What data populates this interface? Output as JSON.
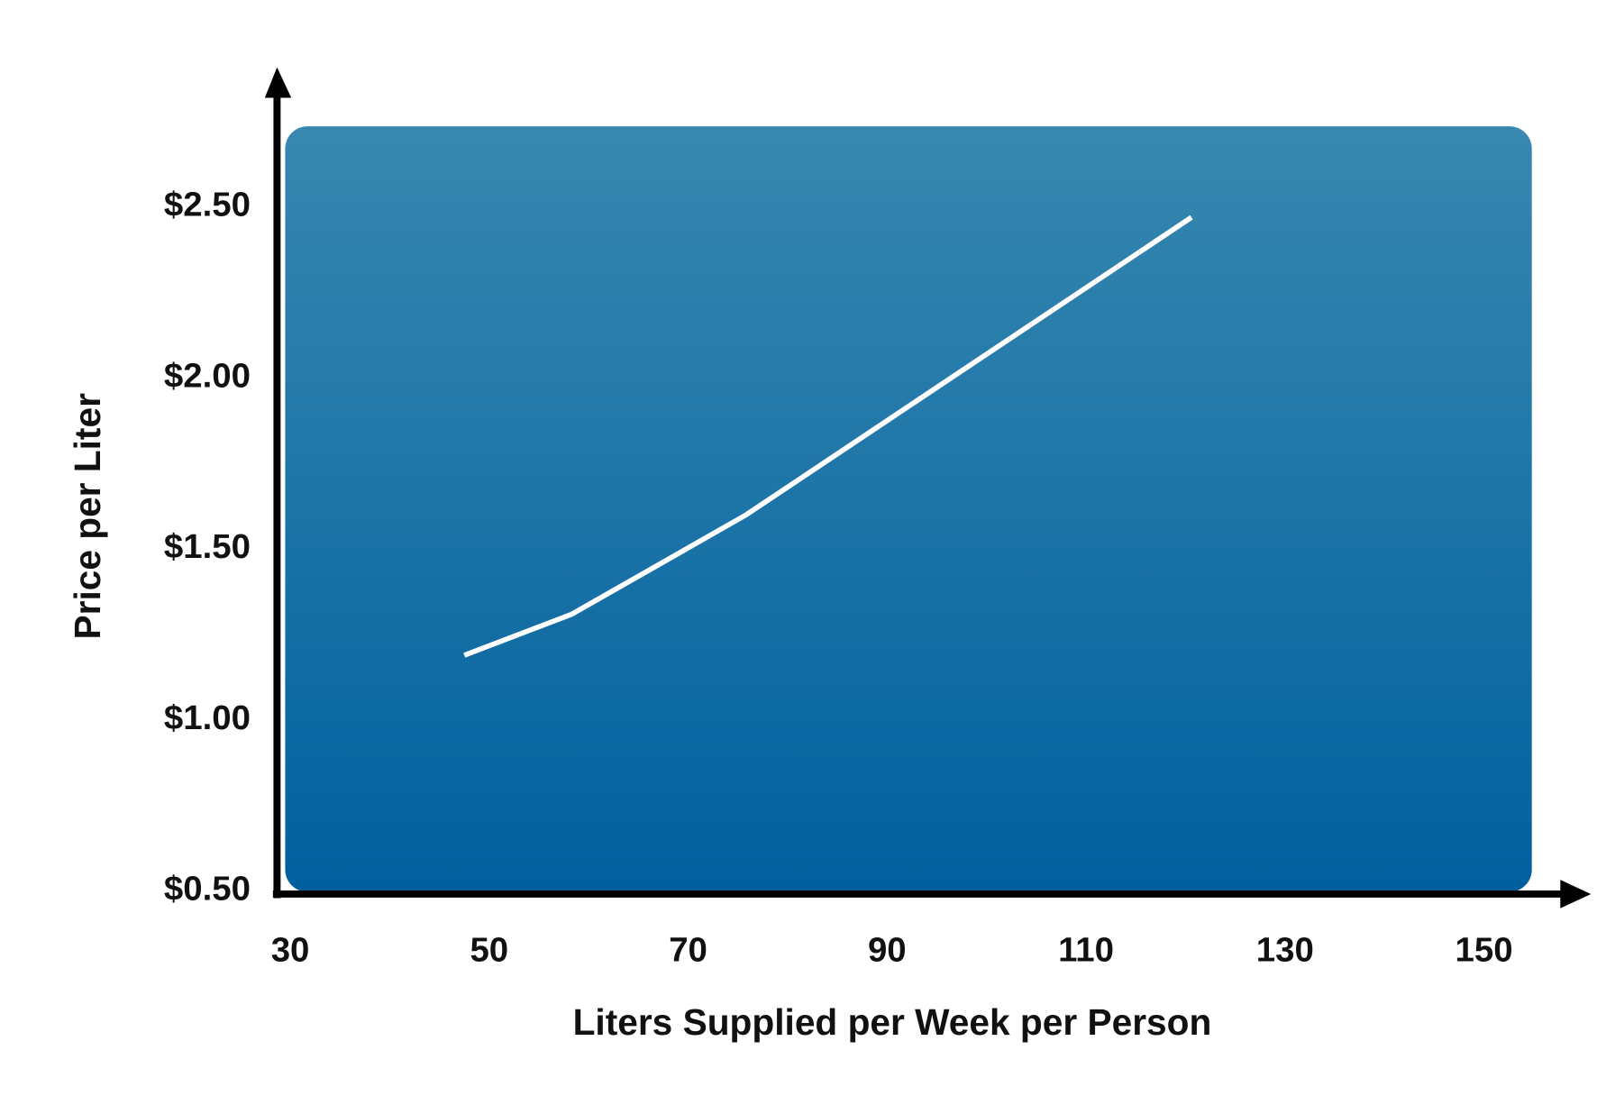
{
  "chart_data": {
    "type": "line",
    "title": "",
    "xlabel": "Liters Supplied per Week per Person",
    "ylabel": "Price per Liter",
    "xlim": [
      30,
      150
    ],
    "ylim": [
      0.5,
      2.5
    ],
    "x_ticks": [
      "30",
      "50",
      "70",
      "90",
      "110",
      "130",
      "150"
    ],
    "x_tick_values": [
      30,
      50,
      70,
      90,
      110,
      130,
      150
    ],
    "y_ticks": [
      "$0.50",
      "$1.00",
      "$1.50",
      "$2.00",
      "$2.50"
    ],
    "y_tick_values": [
      0.5,
      1.0,
      1.5,
      2.0,
      2.5
    ],
    "grid": false,
    "series": [
      {
        "x": [
          47.5,
          58.3,
          75.8,
          120.6
        ],
        "y": [
          1.18,
          1.3,
          1.59,
          2.46
        ],
        "color": "#ffffff"
      }
    ],
    "colors": {
      "panel_top": "#3888b0",
      "panel_bottom": "#00609e",
      "axis": "#000000",
      "line": "#ffffff"
    }
  }
}
